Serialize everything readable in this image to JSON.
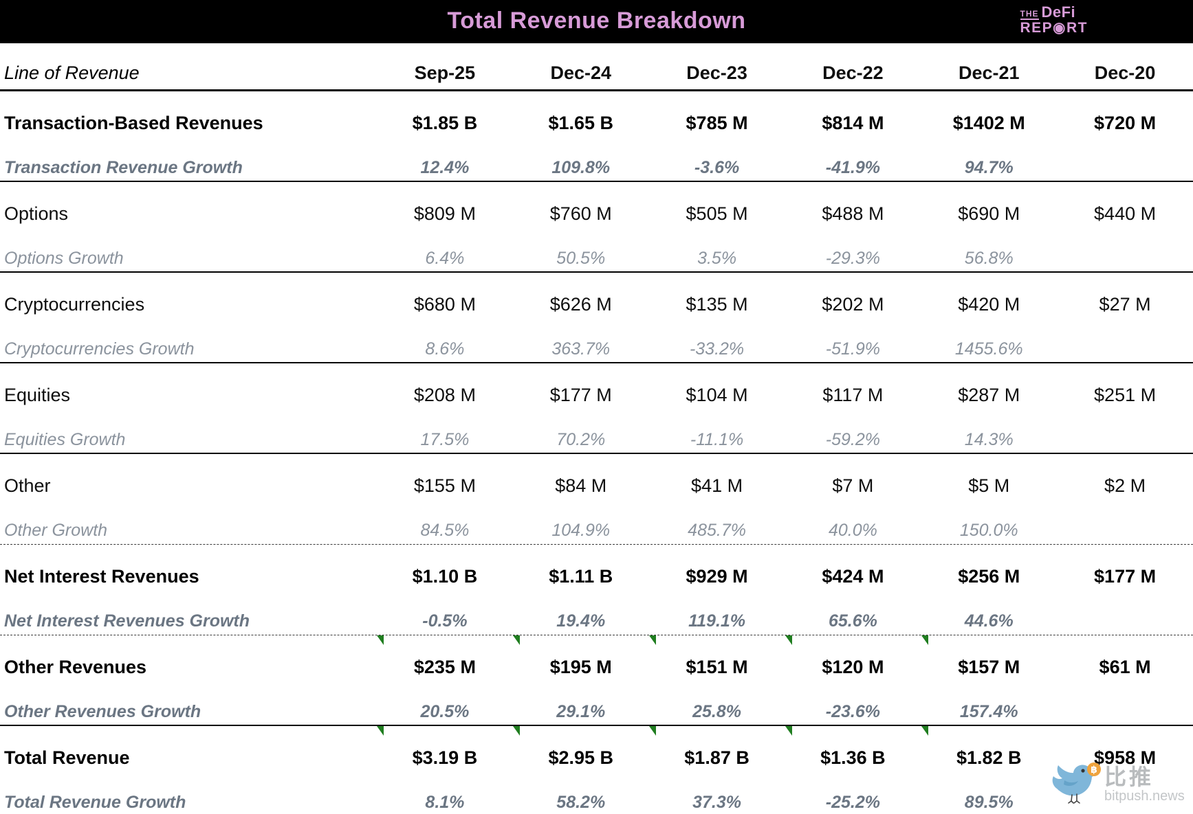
{
  "header": {
    "title": "Total Revenue Breakdown",
    "logo": {
      "the": "THE",
      "defi": "DeFi",
      "report": "REP◉RT"
    }
  },
  "table": {
    "label_header": "Line of Revenue",
    "columns": [
      "Sep-25",
      "Dec-24",
      "Dec-23",
      "Dec-22",
      "Dec-21",
      "Dec-20"
    ],
    "sections": [
      {
        "label": "Transaction-Based Revenues",
        "bold": true,
        "separator": "solid",
        "markers_top": false,
        "values": [
          "$1.85 B",
          "$1.65 B",
          "$785 M",
          "$814 M",
          "$1402 M",
          "$720 M"
        ],
        "growth_label": "Transaction Revenue Growth",
        "growth_values": [
          "12.4%",
          "109.8%",
          "-3.6%",
          "-41.9%",
          "94.7%",
          ""
        ]
      },
      {
        "label": "Options",
        "bold": false,
        "separator": "solid",
        "markers_top": false,
        "values": [
          "$809 M",
          "$760 M",
          "$505 M",
          "$488 M",
          "$690 M",
          "$440 M"
        ],
        "growth_label": "Options Growth",
        "growth_values": [
          "6.4%",
          "50.5%",
          "3.5%",
          "-29.3%",
          "56.8%",
          ""
        ]
      },
      {
        "label": "Cryptocurrencies",
        "bold": false,
        "separator": "solid",
        "markers_top": false,
        "values": [
          "$680 M",
          "$626 M",
          "$135 M",
          "$202 M",
          "$420 M",
          "$27 M"
        ],
        "growth_label": "Cryptocurrencies Growth",
        "growth_values": [
          "8.6%",
          "363.7%",
          "-33.2%",
          "-51.9%",
          "1455.6%",
          ""
        ]
      },
      {
        "label": "Equities",
        "bold": false,
        "separator": "solid",
        "markers_top": false,
        "values": [
          "$208 M",
          "$177 M",
          "$104 M",
          "$117 M",
          "$287 M",
          "$251 M"
        ],
        "growth_label": "Equities Growth",
        "growth_values": [
          "17.5%",
          "70.2%",
          "-11.1%",
          "-59.2%",
          "14.3%",
          ""
        ]
      },
      {
        "label": "Other",
        "bold": false,
        "separator": "dashed",
        "markers_top": false,
        "values": [
          "$155 M",
          "$84 M",
          "$41 M",
          "$7 M",
          "$5 M",
          "$2 M"
        ],
        "growth_label": "Other Growth",
        "growth_values": [
          "84.5%",
          "104.9%",
          "485.7%",
          "40.0%",
          "150.0%",
          ""
        ]
      },
      {
        "label": "Net Interest Revenues",
        "bold": true,
        "separator": "dashed",
        "markers_top": false,
        "values": [
          "$1.10 B",
          "$1.11 B",
          "$929 M",
          "$424 M",
          "$256 M",
          "$177 M"
        ],
        "growth_label": "Net Interest Revenues Growth",
        "growth_values": [
          "-0.5%",
          "19.4%",
          "119.1%",
          "65.6%",
          "44.6%",
          ""
        ]
      },
      {
        "label": "Other Revenues",
        "bold": true,
        "separator": "solid",
        "markers_top": true,
        "values": [
          "$235 M",
          "$195 M",
          "$151 M",
          "$120 M",
          "$157 M",
          "$61 M"
        ],
        "growth_label": "Other Revenues Growth",
        "growth_values": [
          "20.5%",
          "29.1%",
          "25.8%",
          "-23.6%",
          "157.4%",
          ""
        ]
      },
      {
        "label": "Total Revenue",
        "bold": true,
        "separator": "none",
        "markers_top": true,
        "values": [
          "$3.19 B",
          "$2.95 B",
          "$1.87 B",
          "$1.36 B",
          "$1.82 B",
          "$958 M"
        ],
        "growth_label": "Total Revenue Growth",
        "growth_values": [
          "8.1%",
          "58.2%",
          "37.3%",
          "-25.2%",
          "89.5%",
          ""
        ]
      }
    ]
  },
  "watermark": {
    "cn_name": "比推",
    "domain": "bitpush.news",
    "coin_symbol": "฿"
  },
  "colors": {
    "accent_pink": "#d79bd7",
    "marker_green": "#1f7d1f",
    "growth_gray_bold": "#6b7683",
    "growth_gray": "#8b939d",
    "bird_blue": "#7fb6d9",
    "coin_orange": "#efa33d"
  },
  "chart_data": {
    "type": "table",
    "title": "Total Revenue Breakdown",
    "row_header": "Line of Revenue",
    "columns": [
      "Sep-25",
      "Dec-24",
      "Dec-23",
      "Dec-22",
      "Dec-21",
      "Dec-20"
    ],
    "rows": [
      {
        "label": "Transaction-Based Revenues",
        "values": [
          "$1.85 B",
          "$1.65 B",
          "$785 M",
          "$814 M",
          "$1402 M",
          "$720 M"
        ]
      },
      {
        "label": "Transaction Revenue Growth",
        "values": [
          "12.4%",
          "109.8%",
          "-3.6%",
          "-41.9%",
          "94.7%",
          ""
        ]
      },
      {
        "label": "Options",
        "values": [
          "$809 M",
          "$760 M",
          "$505 M",
          "$488 M",
          "$690 M",
          "$440 M"
        ]
      },
      {
        "label": "Options Growth",
        "values": [
          "6.4%",
          "50.5%",
          "3.5%",
          "-29.3%",
          "56.8%",
          ""
        ]
      },
      {
        "label": "Cryptocurrencies",
        "values": [
          "$680 M",
          "$626 M",
          "$135 M",
          "$202 M",
          "$420 M",
          "$27 M"
        ]
      },
      {
        "label": "Cryptocurrencies Growth",
        "values": [
          "8.6%",
          "363.7%",
          "-33.2%",
          "-51.9%",
          "1455.6%",
          ""
        ]
      },
      {
        "label": "Equities",
        "values": [
          "$208 M",
          "$177 M",
          "$104 M",
          "$117 M",
          "$287 M",
          "$251 M"
        ]
      },
      {
        "label": "Equities Growth",
        "values": [
          "17.5%",
          "70.2%",
          "-11.1%",
          "-59.2%",
          "14.3%",
          ""
        ]
      },
      {
        "label": "Other",
        "values": [
          "$155 M",
          "$84 M",
          "$41 M",
          "$7 M",
          "$5 M",
          "$2 M"
        ]
      },
      {
        "label": "Other Growth",
        "values": [
          "84.5%",
          "104.9%",
          "485.7%",
          "40.0%",
          "150.0%",
          ""
        ]
      },
      {
        "label": "Net Interest Revenues",
        "values": [
          "$1.10 B",
          "$1.11 B",
          "$929 M",
          "$424 M",
          "$256 M",
          "$177 M"
        ]
      },
      {
        "label": "Net Interest Revenues Growth",
        "values": [
          "-0.5%",
          "19.4%",
          "119.1%",
          "65.6%",
          "44.6%",
          ""
        ]
      },
      {
        "label": "Other Revenues",
        "values": [
          "$235 M",
          "$195 M",
          "$151 M",
          "$120 M",
          "$157 M",
          "$61 M"
        ]
      },
      {
        "label": "Other Revenues Growth",
        "values": [
          "20.5%",
          "29.1%",
          "25.8%",
          "-23.6%",
          "157.4%",
          ""
        ]
      },
      {
        "label": "Total Revenue",
        "values": [
          "$3.19 B",
          "$2.95 B",
          "$1.87 B",
          "$1.36 B",
          "$1.82 B",
          "$958 M"
        ]
      },
      {
        "label": "Total Revenue Growth",
        "values": [
          "8.1%",
          "58.2%",
          "37.3%",
          "-25.2%",
          "89.5%",
          ""
        ]
      }
    ]
  }
}
